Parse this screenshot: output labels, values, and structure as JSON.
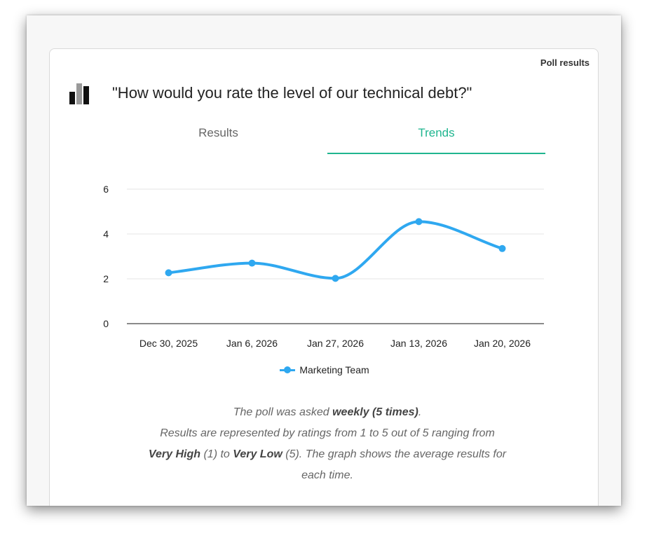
{
  "card": {
    "label": "Poll results"
  },
  "question": "\"How would you rate the level of our technical debt?\"",
  "icon": {
    "name": "bar-chart-icon",
    "colors": [
      "#111111",
      "#9a9a9a",
      "#111111"
    ]
  },
  "tabs": [
    {
      "label": "Results",
      "active": false
    },
    {
      "label": "Trends",
      "active": true
    }
  ],
  "colors": {
    "accent": "#1fb58f",
    "series": "#2fa8f0"
  },
  "chart_data": {
    "type": "line",
    "categories": [
      "Dec 30, 2025",
      "Jan 6, 2026",
      "Jan 27, 2026",
      "Jan 13, 2026",
      "Jan 20, 2026"
    ],
    "series": [
      {
        "name": "Marketing Team",
        "values": [
          2.27,
          2.7,
          2.02,
          4.55,
          3.35
        ],
        "color": "#2fa8f0"
      }
    ],
    "yticks": [
      0,
      2,
      4,
      6
    ],
    "ylim": [
      0,
      6
    ],
    "grid": true,
    "smooth": true,
    "legend": "bottom-center"
  },
  "description": {
    "l1_pre": "The poll was asked ",
    "l1_bold": "weekly (5 times)",
    "l1_post": ".",
    "l2": "Results are represented by ratings from 1 to 5 out of 5 ranging from",
    "l3_bold1": "Very High",
    "l3_mid1": " (1) to ",
    "l3_bold2": "Very Low",
    "l3_mid2": " (5). The graph shows the average results for",
    "l4": "each time."
  }
}
